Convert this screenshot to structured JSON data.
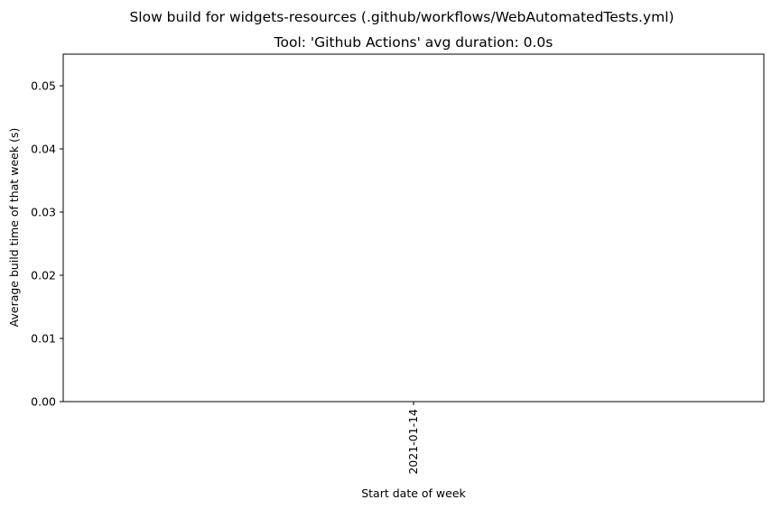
{
  "chart_data": {
    "type": "bar",
    "suptitle": "Slow build for widgets-resources (.github/workflows/WebAutomatedTests.yml)",
    "title": "Tool: 'Github Actions' avg duration: 0.0s",
    "xlabel": "Start date of week",
    "ylabel": "Average build time of that week (s)",
    "categories": [
      "2021-01-14"
    ],
    "values": [
      0.0
    ],
    "ylim": [
      0,
      0.055
    ],
    "yticks": [
      0.0,
      0.01,
      0.02,
      0.03,
      0.04,
      0.05
    ],
    "ytick_labels": [
      "0.00",
      "0.01",
      "0.02",
      "0.03",
      "0.04",
      "0.05"
    ],
    "grid": false,
    "bar_color": "#1f77b4"
  }
}
